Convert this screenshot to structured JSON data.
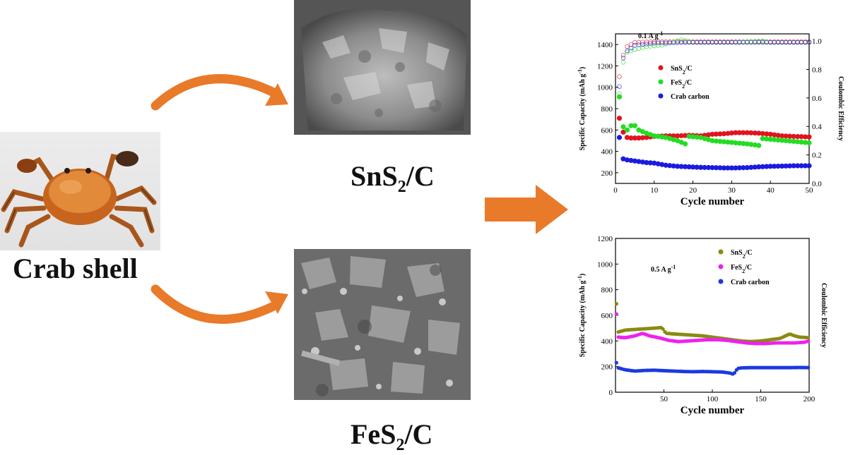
{
  "left": {
    "caption": "Crab shell",
    "icon": "crab-photo"
  },
  "materials": [
    {
      "formula_prefix": "SnS",
      "subscript": "2",
      "suffix": "/C",
      "icon": "sem-micrograph-sns2"
    },
    {
      "formula_prefix": "FeS",
      "subscript": "2",
      "suffix": "/C",
      "icon": "sem-micrograph-fes2"
    }
  ],
  "colors": {
    "arrow": "#e87a2a",
    "sns2_top": "#e0141e",
    "fes2_top": "#22dd22",
    "crab_top": "#1a1ae0",
    "sns2_bottom": "#8a8a10",
    "fes2_bottom": "#ee22ee",
    "crab_bottom": "#1a3ae0"
  },
  "chart_data": [
    {
      "type": "scatter",
      "annotation": "0.1 A g",
      "annotation_sup": "-1",
      "xlabel": "Cycle number",
      "ylabel": "Specific Capacity (mAh g",
      "ylabel_sup": "-1",
      "ylabel_end": ")",
      "y2label": "Coulombic Efficiency",
      "xlim": [
        0,
        50
      ],
      "ylim": [
        100,
        1500
      ],
      "y2lim": [
        0,
        1.05
      ],
      "xticks": [
        0,
        10,
        20,
        30,
        40,
        50
      ],
      "yticks": [
        200,
        400,
        600,
        800,
        1000,
        1200,
        1400
      ],
      "y2ticks": [
        "0.0",
        "0.2",
        "0.4",
        "0.6",
        "0.8",
        "1.0"
      ],
      "legend_placement": "upper-left",
      "series": [
        {
          "name": "SnS",
          "name_sub": "2",
          "name_end": "/C",
          "color_key": "sns2_top",
          "capacity": [
            [
              1,
              710
            ],
            [
              2,
              580
            ],
            [
              3,
              530
            ],
            [
              4,
              525
            ],
            [
              6,
              525
            ],
            [
              8,
              530
            ],
            [
              10,
              540
            ],
            [
              13,
              545
            ],
            [
              16,
              545
            ],
            [
              19,
              550
            ],
            [
              22,
              545
            ],
            [
              25,
              560
            ],
            [
              28,
              565
            ],
            [
              31,
              575
            ],
            [
              34,
              575
            ],
            [
              37,
              570
            ],
            [
              40,
              560
            ],
            [
              43,
              545
            ],
            [
              46,
              540
            ],
            [
              50,
              535
            ]
          ],
          "efficiency": [
            [
              1,
              0.75
            ],
            [
              2,
              0.9
            ],
            [
              3,
              0.96
            ],
            [
              5,
              0.99
            ],
            [
              10,
              0.995
            ],
            [
              20,
              0.995
            ],
            [
              30,
              0.995
            ],
            [
              40,
              0.995
            ],
            [
              50,
              0.995
            ]
          ]
        },
        {
          "name": "FeS",
          "name_sub": "2",
          "name_end": "/C",
          "color_key": "fes2_top",
          "capacity": [
            [
              1,
              910
            ],
            [
              2,
              630
            ],
            [
              3,
              600
            ],
            [
              4,
              640
            ],
            [
              5,
              640
            ],
            [
              6,
              600
            ],
            [
              8,
              570
            ],
            [
              10,
              545
            ],
            [
              13,
              530
            ],
            [
              16,
              500
            ],
            [
              18,
              470
            ],
            [
              19,
              540
            ],
            [
              22,
              530
            ],
            [
              25,
              500
            ],
            [
              28,
              490
            ],
            [
              31,
              480
            ],
            [
              34,
              470
            ],
            [
              37,
              455
            ],
            [
              38,
              520
            ],
            [
              41,
              510
            ],
            [
              44,
              500
            ],
            [
              47,
              490
            ],
            [
              50,
              480
            ]
          ],
          "efficiency": [
            [
              1,
              0.63
            ],
            [
              2,
              0.85
            ],
            [
              3,
              0.92
            ],
            [
              5,
              0.94
            ],
            [
              8,
              0.96
            ],
            [
              12,
              0.97
            ],
            [
              17,
              1.01
            ],
            [
              20,
              0.99
            ],
            [
              30,
              0.99
            ],
            [
              38,
              1.0
            ],
            [
              40,
              0.99
            ],
            [
              50,
              0.99
            ]
          ]
        },
        {
          "name": "Crab carbon",
          "color_key": "crab_top",
          "capacity": [
            [
              1,
              530
            ],
            [
              2,
              330
            ],
            [
              3,
              320
            ],
            [
              5,
              310
            ],
            [
              8,
              295
            ],
            [
              10,
              290
            ],
            [
              13,
              270
            ],
            [
              16,
              260
            ],
            [
              19,
              255
            ],
            [
              22,
              250
            ],
            [
              25,
              248
            ],
            [
              28,
              245
            ],
            [
              31,
              245
            ],
            [
              34,
              248
            ],
            [
              37,
              255
            ],
            [
              40,
              260
            ],
            [
              43,
              262
            ],
            [
              46,
              265
            ],
            [
              50,
              265
            ]
          ],
          "efficiency": [
            [
              1,
              0.68
            ],
            [
              2,
              0.88
            ],
            [
              3,
              0.93
            ],
            [
              5,
              0.97
            ],
            [
              10,
              0.985
            ],
            [
              20,
              0.99
            ],
            [
              30,
              0.99
            ],
            [
              40,
              0.99
            ],
            [
              50,
              0.99
            ]
          ]
        }
      ]
    },
    {
      "type": "scatter",
      "annotation": "0.5 A g",
      "annotation_sup": "-1",
      "xlabel": "Cycle number",
      "ylabel": "Specific Capacity (mAh g",
      "ylabel_sup": "-1",
      "ylabel_end": ")",
      "y2label": "Coulombic Efficiency",
      "xlim": [
        0,
        200
      ],
      "ylim": [
        0,
        1200
      ],
      "xticks": [
        50,
        100,
        150,
        200
      ],
      "yticks": [
        0,
        200,
        400,
        600,
        800,
        1000,
        1200
      ],
      "legend_placement": "upper-right",
      "series": [
        {
          "name": "SnS",
          "name_sub": "2",
          "name_end": "/C",
          "color_key": "sns2_bottom",
          "capacity": [
            [
              1,
              690
            ],
            [
              3,
              470
            ],
            [
              10,
              485
            ],
            [
              20,
              490
            ],
            [
              30,
              495
            ],
            [
              40,
              500
            ],
            [
              48,
              505
            ],
            [
              52,
              460
            ],
            [
              60,
              455
            ],
            [
              70,
              450
            ],
            [
              80,
              445
            ],
            [
              90,
              440
            ],
            [
              100,
              430
            ],
            [
              110,
              420
            ],
            [
              120,
              410
            ],
            [
              130,
              400
            ],
            [
              140,
              395
            ],
            [
              150,
              400
            ],
            [
              160,
              410
            ],
            [
              170,
              420
            ],
            [
              180,
              455
            ],
            [
              185,
              440
            ],
            [
              190,
              430
            ],
            [
              200,
              425
            ]
          ]
        },
        {
          "name": "FeS",
          "name_sub": "2",
          "name_end": "/C",
          "color_key": "fes2_bottom",
          "capacity": [
            [
              1,
              610
            ],
            [
              3,
              430
            ],
            [
              10,
              425
            ],
            [
              20,
              440
            ],
            [
              28,
              460
            ],
            [
              35,
              440
            ],
            [
              45,
              425
            ],
            [
              55,
              405
            ],
            [
              65,
              395
            ],
            [
              75,
              400
            ],
            [
              85,
              405
            ],
            [
              95,
              410
            ],
            [
              105,
              410
            ],
            [
              115,
              405
            ],
            [
              125,
              395
            ],
            [
              135,
              385
            ],
            [
              145,
              380
            ],
            [
              155,
              380
            ],
            [
              165,
              385
            ],
            [
              175,
              385
            ],
            [
              185,
              385
            ],
            [
              195,
              390
            ],
            [
              200,
              400
            ]
          ]
        },
        {
          "name": "Crab carbon",
          "color_key": "crab_bottom",
          "capacity": [
            [
              1,
              230
            ],
            [
              3,
              190
            ],
            [
              10,
              175
            ],
            [
              20,
              165
            ],
            [
              30,
              170
            ],
            [
              40,
              172
            ],
            [
              50,
              168
            ],
            [
              60,
              165
            ],
            [
              70,
              162
            ],
            [
              80,
              160
            ],
            [
              90,
              162
            ],
            [
              100,
              160
            ],
            [
              110,
              158
            ],
            [
              118,
              150
            ],
            [
              122,
              140
            ],
            [
              126,
              185
            ],
            [
              130,
              190
            ],
            [
              140,
              192
            ],
            [
              150,
              192
            ],
            [
              160,
              192
            ],
            [
              170,
              192
            ],
            [
              180,
              192
            ],
            [
              190,
              193
            ],
            [
              200,
              192
            ]
          ]
        }
      ]
    }
  ]
}
